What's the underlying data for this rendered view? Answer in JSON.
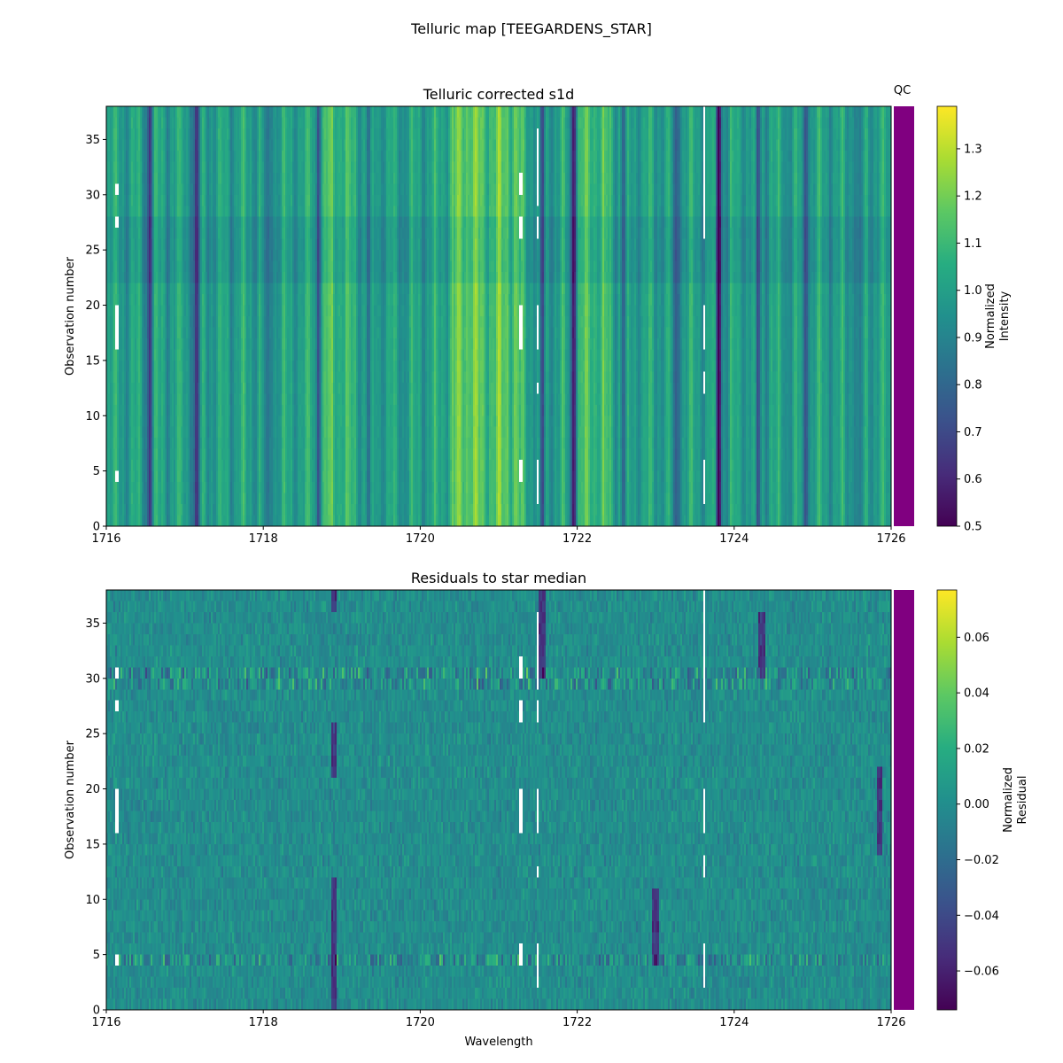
{
  "figure": {
    "suptitle": "Telluric map [TEEGARDENS_STAR]",
    "qc_label": "QC",
    "qc_color": "#800080"
  },
  "chart_data": [
    {
      "type": "heatmap",
      "title": "Telluric corrected s1d",
      "xlabel": "",
      "ylabel": "Observation number",
      "xlim": [
        1716,
        1726
      ],
      "ylim": [
        0,
        38
      ],
      "x_ticks": [
        1716,
        1718,
        1720,
        1722,
        1724,
        1726
      ],
      "x_tick_labels": [
        "1716",
        "1718",
        "1720",
        "1722",
        "1724",
        "1726"
      ],
      "y_ticks": [
        0,
        5,
        10,
        15,
        20,
        25,
        30,
        35
      ],
      "y_tick_labels": [
        "0",
        "5",
        "10",
        "15",
        "20",
        "25",
        "30",
        "35"
      ],
      "colormap": "viridis",
      "colorbar": {
        "label_lines": [
          "Normalized",
          "Intensity"
        ],
        "range": [
          0.5,
          1.39
        ],
        "ticks": [
          0.5,
          0.6,
          0.7,
          0.8,
          0.9,
          1.0,
          1.1,
          1.2,
          1.3
        ],
        "tick_labels": [
          "0.5",
          "0.6",
          "0.7",
          "0.8",
          "0.9",
          "1.0",
          "1.1",
          "1.2",
          "1.3"
        ]
      },
      "absorption_lines": [
        {
          "x": 1717.15,
          "depth": 0.45
        },
        {
          "x": 1716.55,
          "depth": 0.3
        },
        {
          "x": 1718.05,
          "depth": 0.25
        },
        {
          "x": 1718.7,
          "depth": 0.22
        },
        {
          "x": 1719.35,
          "depth": 0.2
        },
        {
          "x": 1721.55,
          "depth": 0.35
        },
        {
          "x": 1721.95,
          "depth": 0.42
        },
        {
          "x": 1722.6,
          "depth": 0.2
        },
        {
          "x": 1723.25,
          "depth": 0.28
        },
        {
          "x": 1723.8,
          "depth": 0.48
        },
        {
          "x": 1724.3,
          "depth": 0.3
        },
        {
          "x": 1724.9,
          "depth": 0.22
        },
        {
          "x": 1725.6,
          "depth": 0.2
        }
      ],
      "bright_bands": [
        {
          "x": 1718.9,
          "amp": 0.12
        },
        {
          "x": 1720.6,
          "amp": 0.18
        },
        {
          "x": 1721.1,
          "amp": 0.16
        },
        {
          "x": 1722.2,
          "amp": 0.12
        }
      ],
      "masked_gaps": [
        {
          "x": 1716.14,
          "obs": [
            [
              4,
              5
            ],
            [
              16,
              20
            ],
            [
              27,
              28
            ],
            [
              30,
              31
            ]
          ]
        },
        {
          "x": 1721.28,
          "obs": [
            [
              4,
              6
            ],
            [
              16,
              20
            ],
            [
              26,
              28
            ],
            [
              30,
              32
            ]
          ]
        },
        {
          "x": 1721.5,
          "obs": [
            [
              2,
              6
            ],
            [
              12,
              13
            ],
            [
              16,
              20
            ],
            [
              26,
              28
            ],
            [
              29,
              36
            ]
          ]
        },
        {
          "x": 1723.62,
          "obs": [
            [
              2,
              6
            ],
            [
              12,
              14
            ],
            [
              16,
              20
            ],
            [
              26,
              38
            ]
          ]
        }
      ]
    },
    {
      "type": "heatmap",
      "title": "Residuals to star median",
      "xlabel": "Wavelength",
      "ylabel": "Observation number",
      "xlim": [
        1716,
        1726
      ],
      "ylim": [
        0,
        38
      ],
      "x_ticks": [
        1716,
        1718,
        1720,
        1722,
        1724,
        1726
      ],
      "x_tick_labels": [
        "1716",
        "1718",
        "1720",
        "1722",
        "1724",
        "1726"
      ],
      "y_ticks": [
        0,
        5,
        10,
        15,
        20,
        25,
        30,
        35
      ],
      "y_tick_labels": [
        "0",
        "5",
        "10",
        "15",
        "20",
        "25",
        "30",
        "35"
      ],
      "colormap": "viridis",
      "colorbar": {
        "label_lines": [
          "Normalized",
          "Residual"
        ],
        "range": [
          -0.074,
          0.077
        ],
        "ticks": [
          -0.06,
          -0.04,
          -0.02,
          0.0,
          0.02,
          0.04,
          0.06
        ],
        "tick_labels": [
          "−0.06",
          "−0.04",
          "−0.02",
          "0.00",
          "0.02",
          "0.04",
          "0.06"
        ]
      },
      "noisy_rows": [
        4,
        29,
        30
      ],
      "dark_features": [
        {
          "x": 1718.9,
          "obs": [
            [
              0,
              12
            ],
            [
              21,
              26
            ],
            [
              36,
              38
            ]
          ]
        },
        {
          "x": 1724.35,
          "obs": [
            [
              30,
              36
            ]
          ]
        },
        {
          "x": 1725.85,
          "obs": [
            [
              14,
              22
            ]
          ]
        },
        {
          "x": 1723.0,
          "obs": [
            [
              4,
              11
            ]
          ]
        },
        {
          "x": 1721.55,
          "obs": [
            [
              30,
              38
            ]
          ]
        }
      ],
      "masked_gaps": [
        {
          "x": 1716.14,
          "obs": [
            [
              4,
              5
            ],
            [
              16,
              20
            ],
            [
              27,
              28
            ],
            [
              30,
              31
            ]
          ]
        },
        {
          "x": 1721.28,
          "obs": [
            [
              4,
              6
            ],
            [
              16,
              20
            ],
            [
              26,
              28
            ],
            [
              30,
              32
            ]
          ]
        },
        {
          "x": 1721.5,
          "obs": [
            [
              2,
              6
            ],
            [
              12,
              13
            ],
            [
              16,
              20
            ],
            [
              26,
              28
            ],
            [
              29,
              36
            ]
          ]
        },
        {
          "x": 1723.62,
          "obs": [
            [
              2,
              6
            ],
            [
              12,
              14
            ],
            [
              16,
              20
            ],
            [
              26,
              38
            ]
          ]
        }
      ]
    }
  ]
}
